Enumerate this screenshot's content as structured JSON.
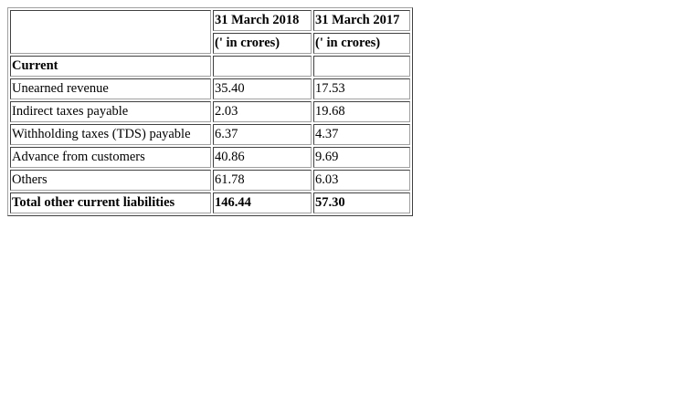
{
  "header": {
    "col1_date": "31 March 2018",
    "col2_date": "31 March 2017",
    "col1_unit": "(' in crores)",
    "col2_unit": "(' in crores)"
  },
  "section_label": "Current",
  "rows": [
    {
      "label": "Unearned revenue",
      "v2018": "35.40",
      "v2017": "17.53"
    },
    {
      "label": "Indirect taxes payable",
      "v2018": "2.03",
      "v2017": "19.68"
    },
    {
      "label": "Withholding taxes (TDS) payable",
      "v2018": "6.37",
      "v2017": "4.37"
    },
    {
      "label": "Advance from customers",
      "v2018": "40.86",
      "v2017": "9.69"
    },
    {
      "label": "Others",
      "v2018": "61.78",
      "v2017": "6.03"
    }
  ],
  "total": {
    "label": "Total other current liabilities",
    "v2018": "146.44",
    "v2017": "57.30"
  }
}
